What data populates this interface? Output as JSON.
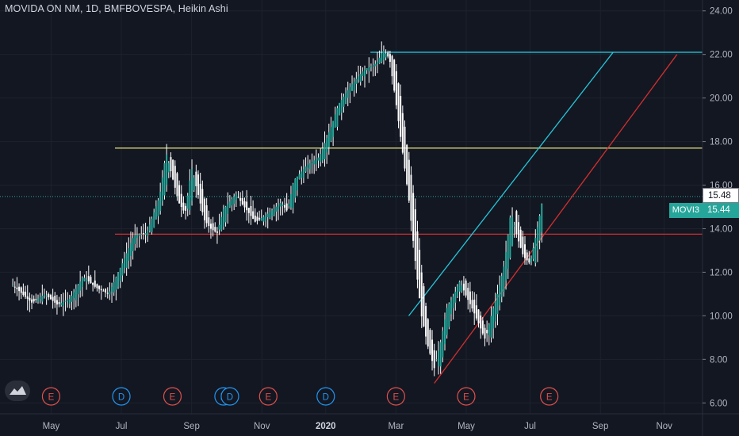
{
  "header": {
    "title": "MOVIDA ON NM, 1D, BMFBOVESPA, Heikin Ashi"
  },
  "price_axis": {
    "last_price_label": "15.48",
    "close_price_label": "15.44",
    "ticker_badge": "MOVI3"
  },
  "colors": {
    "background": "#131722",
    "grid": "#1e222d",
    "text": "#b2b5be",
    "candle_body": "#26a69a",
    "candle_wick": "#ffffff",
    "resistance_line": "#d6d176",
    "support_line": "#d32f2f",
    "channel_top": "#26c6da",
    "channel_bottom": "#d32f2f",
    "price_line": "#26a69a",
    "event_e": "#e0504c",
    "event_d": "#2196f3"
  },
  "chart_data": {
    "type": "candlestick",
    "variant": "Heikin Ashi",
    "title": "MOVIDA ON NM, 1D, BMFBOVESPA, Heikin Ashi",
    "x_tick_labels": [
      "May",
      "Jul",
      "Sep",
      "Nov",
      "2020",
      "Mar",
      "May",
      "Jul",
      "Sep",
      "Nov"
    ],
    "y_tick_labels": [
      "24.00",
      "22.00",
      "20.00",
      "18.00",
      "16.00",
      "14.00",
      "12.00",
      "10.00",
      "8.00",
      "6.00"
    ],
    "ylim": [
      5.5,
      24.5
    ],
    "grid": true,
    "last_price": 15.48,
    "close_price": 15.44,
    "ticker": "MOVI3",
    "price_path": [
      [
        0,
        11.4
      ],
      [
        3,
        10.6
      ],
      [
        5,
        11.0
      ],
      [
        7,
        10.5
      ],
      [
        9,
        10.8
      ],
      [
        11,
        11.8
      ],
      [
        13,
        11.3
      ],
      [
        15,
        11.0
      ],
      [
        17,
        12.3
      ],
      [
        19,
        13.7
      ],
      [
        21,
        13.8
      ],
      [
        23,
        15.5
      ],
      [
        24,
        17.5
      ],
      [
        26,
        15.2
      ],
      [
        27,
        14.7
      ],
      [
        28,
        16.8
      ],
      [
        30,
        14.4
      ],
      [
        31,
        14.0
      ],
      [
        32,
        13.8
      ],
      [
        33,
        14.9
      ],
      [
        35,
        15.6
      ],
      [
        36,
        15.1
      ],
      [
        38,
        14.3
      ],
      [
        40,
        14.7
      ],
      [
        42,
        15.2
      ],
      [
        43,
        14.8
      ],
      [
        44,
        16.2
      ],
      [
        46,
        16.9
      ],
      [
        48,
        17.3
      ],
      [
        50,
        18.8
      ],
      [
        51,
        19.7
      ],
      [
        53,
        20.6
      ],
      [
        55,
        21.3
      ],
      [
        57,
        21.6
      ],
      [
        58,
        22.2
      ],
      [
        59,
        21.8
      ],
      [
        60,
        19.8
      ],
      [
        61,
        17.6
      ],
      [
        62,
        15.4
      ],
      [
        63,
        12.6
      ],
      [
        64,
        10.0
      ],
      [
        65,
        8.6
      ],
      [
        66,
        7.6
      ],
      [
        67,
        8.8
      ],
      [
        68,
        10.4
      ],
      [
        69,
        10.9
      ],
      [
        70,
        11.6
      ],
      [
        71,
        10.9
      ],
      [
        72,
        10.3
      ],
      [
        73,
        9.6
      ],
      [
        74,
        8.9
      ],
      [
        75,
        10.1
      ],
      [
        76,
        11.1
      ],
      [
        77,
        12.4
      ],
      [
        78,
        14.8
      ],
      [
        79,
        13.6
      ],
      [
        80,
        12.7
      ],
      [
        81,
        12.4
      ],
      [
        82,
        13.8
      ],
      [
        83,
        15.4
      ]
    ],
    "events": [
      {
        "type": "E",
        "x": 6
      },
      {
        "type": "D",
        "x": 17
      },
      {
        "type": "E",
        "x": 25
      },
      {
        "type": "D",
        "x": 33
      },
      {
        "type": "D",
        "x": 34
      },
      {
        "type": "E",
        "x": 40
      },
      {
        "type": "D",
        "x": 49
      },
      {
        "type": "E",
        "x": 60
      },
      {
        "type": "E",
        "x": 71
      },
      {
        "type": "E",
        "x": 84
      }
    ],
    "drawings": [
      {
        "kind": "horizontal",
        "color": "resistance_line",
        "x_start": 16,
        "y": 17.7
      },
      {
        "kind": "horizontal",
        "color": "support_line",
        "x_start": 16,
        "y": 13.75
      },
      {
        "kind": "horizontal",
        "color": "channel_top",
        "x_start": 56,
        "y": 22.1
      },
      {
        "kind": "trend",
        "color": "channel_top",
        "from": [
          62,
          10.0
        ],
        "to": [
          94,
          22.1
        ]
      },
      {
        "kind": "trend",
        "color": "channel_bottom",
        "from": [
          66,
          6.9
        ],
        "to": [
          104,
          22.0
        ]
      }
    ],
    "x_ticks": [
      6,
      17,
      28,
      39,
      49,
      60,
      71,
      81,
      92,
      102
    ]
  }
}
